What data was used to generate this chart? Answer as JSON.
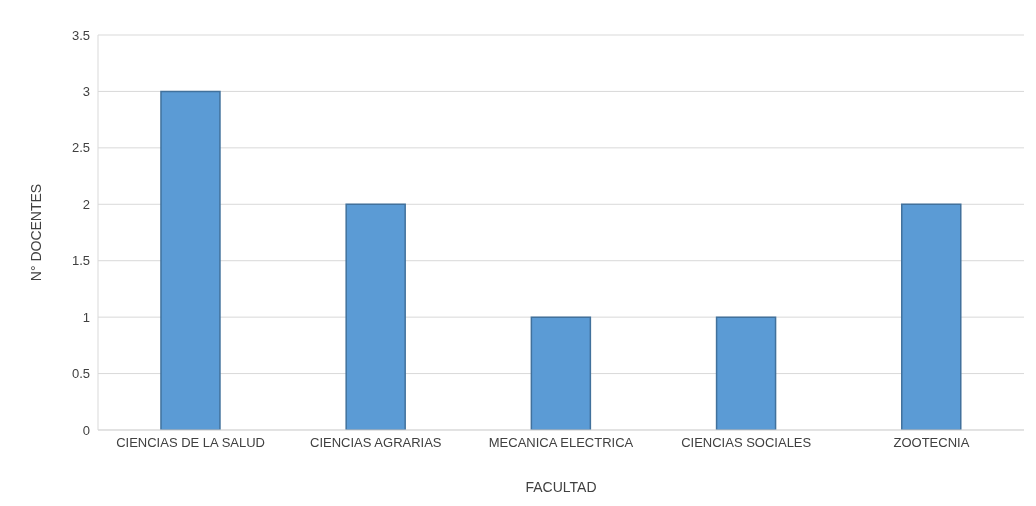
{
  "chart_data": {
    "type": "bar",
    "xlabel": "FACULTAD",
    "ylabel": "N° DOCENTES",
    "categories": [
      "CIENCIAS DE LA SALUD",
      "CIENCIAS AGRARIAS",
      "MECANICA ELECTRICA",
      "CIENCIAS SOCIALES",
      "ZOOTECNIA"
    ],
    "values": [
      3,
      2,
      1,
      1,
      2
    ],
    "color": "#5b9bd5",
    "ylim": [
      0,
      3.5
    ],
    "yticks": [
      0,
      0.5,
      1,
      1.5,
      2,
      2.5,
      3,
      3.5
    ],
    "grid": "y"
  }
}
